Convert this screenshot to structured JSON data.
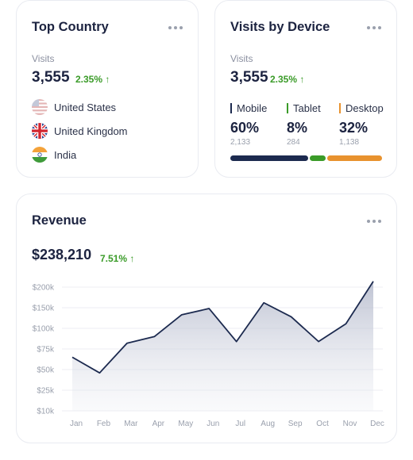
{
  "top_country": {
    "title": "Top Country",
    "metric_label": "Visits",
    "value": "3,555",
    "change": "2.35%",
    "countries": [
      {
        "name": "United States",
        "flag": "us-flag-icon"
      },
      {
        "name": "United Kingdom",
        "flag": "uk-flag-icon"
      },
      {
        "name": "India",
        "flag": "india-flag-icon"
      }
    ]
  },
  "visits_by_device": {
    "title": "Visits by Device",
    "metric_label": "Visits",
    "value": "3,555",
    "change": "2.35%",
    "devices": [
      {
        "name": "Mobile",
        "percent": "60%",
        "count": "2,133",
        "share": 60,
        "color": "#1c2a4f"
      },
      {
        "name": "Tablet",
        "percent": "8%",
        "count": "284",
        "share": 8,
        "color": "#3a9b28"
      },
      {
        "name": "Desktop",
        "percent": "32%",
        "count": "1,138",
        "share": 32,
        "color": "#e8922e"
      }
    ]
  },
  "revenue": {
    "title": "Revenue",
    "value": "$238,210",
    "change": "7.51%"
  },
  "colors": {
    "accent": "#1c2a4f",
    "positive": "#3a9b28",
    "desktop": "#e8922e"
  },
  "chart_data": {
    "type": "area",
    "title": "Revenue",
    "categories": [
      "Jan",
      "Feb",
      "Mar",
      "Apr",
      "May",
      "Jun",
      "Jul",
      "Aug",
      "Sep",
      "Oct",
      "Nov",
      "Dec"
    ],
    "series": [
      {
        "values": [
          65000,
          46000,
          82000,
          90000,
          133000,
          148000,
          84000,
          162000,
          128000,
          84000,
          111000,
          214000
        ]
      }
    ],
    "y_ticks": [
      "$10k",
      "$25k",
      "$50k",
      "$75k",
      "$100k",
      "$150k",
      "$200k"
    ],
    "grid": true,
    "xlabel": "",
    "ylabel": ""
  }
}
